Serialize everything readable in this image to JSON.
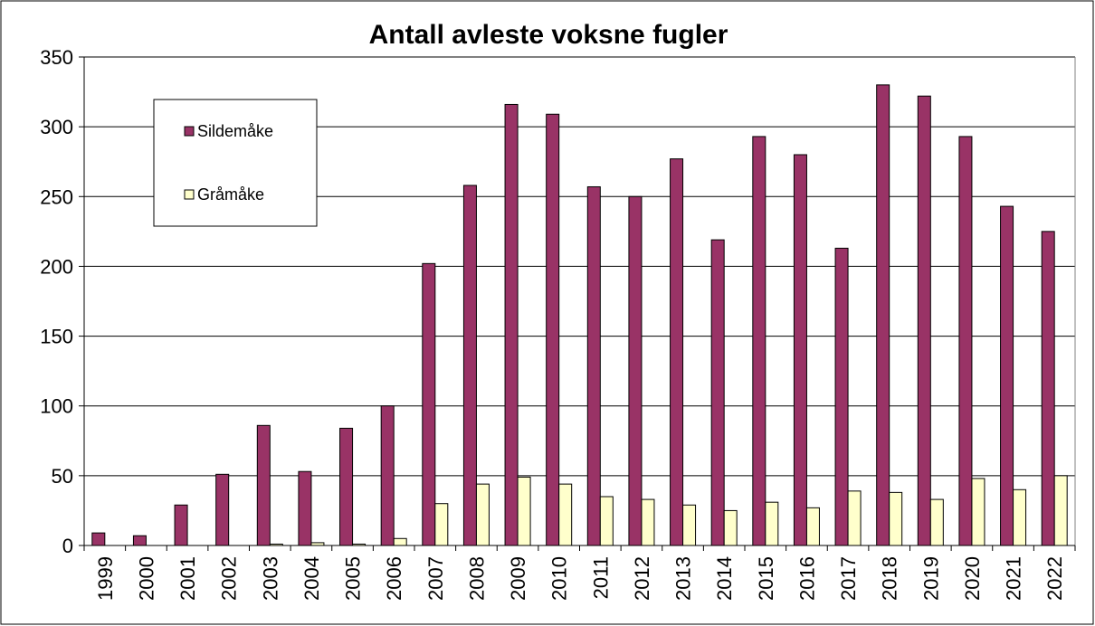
{
  "chart_data": {
    "type": "bar",
    "title": "Antall avleste voksne fugler",
    "categories": [
      "1999",
      "2000",
      "2001",
      "2002",
      "2003",
      "2004",
      "2005",
      "2006",
      "2007",
      "2008",
      "2009",
      "2010",
      "2011",
      "2012",
      "2013",
      "2014",
      "2015",
      "2016",
      "2017",
      "2018",
      "2019",
      "2020",
      "2021",
      "2022"
    ],
    "series": [
      {
        "name": "Sildemåke",
        "color": "#993366",
        "values": [
          9,
          7,
          29,
          51,
          86,
          53,
          84,
          100,
          202,
          258,
          316,
          309,
          257,
          250,
          277,
          219,
          293,
          280,
          213,
          330,
          322,
          293,
          243,
          225
        ]
      },
      {
        "name": "Gråmåke",
        "color": "#FFFFCC",
        "values": [
          0,
          0,
          0,
          0,
          1,
          2,
          1,
          5,
          30,
          44,
          49,
          44,
          35,
          33,
          29,
          25,
          31,
          27,
          39,
          38,
          33,
          48,
          40,
          50
        ]
      }
    ],
    "ylim": [
      0,
      350
    ],
    "yticks": [
      0,
      50,
      100,
      150,
      200,
      250,
      300,
      350
    ],
    "grid": true,
    "legend": "upper left"
  }
}
